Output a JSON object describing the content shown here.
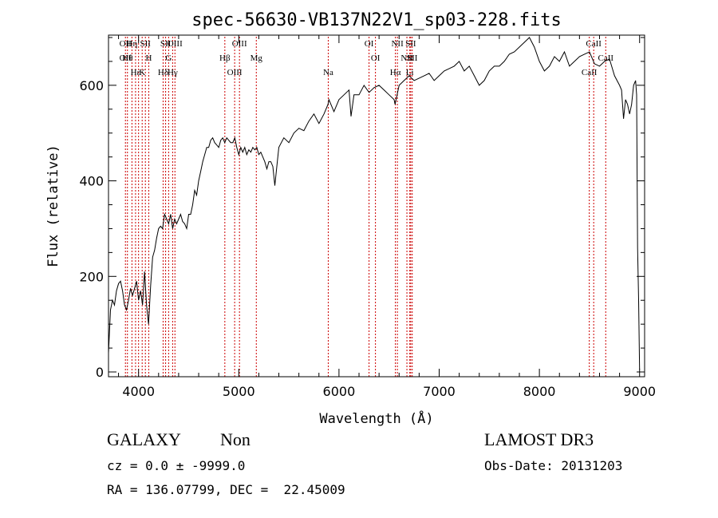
{
  "chart_data": {
    "type": "line",
    "title": "spec-56630-VB137N22V1_sp03-228.fits",
    "xlabel": "Wavelength (Å)",
    "ylabel": "Flux (relative)",
    "xlim": [
      3700,
      9050
    ],
    "ylim": [
      -10,
      705
    ],
    "x_ticks": [
      4000,
      5000,
      6000,
      7000,
      8000,
      9000
    ],
    "y_ticks": [
      0,
      200,
      400,
      600
    ],
    "minor_x_step": 200,
    "minor_y_step": 50,
    "grid": false,
    "line_color": "#000000",
    "marker_color": "#cc0000",
    "series": [
      {
        "values_x": [
          3700,
          3720,
          3740,
          3760,
          3780,
          3800,
          3820,
          3840,
          3860,
          3880,
          3900,
          3920,
          3940,
          3960,
          3980,
          4000,
          4020,
          4040,
          4060,
          4080,
          4100,
          4120,
          4140,
          4160,
          4180,
          4200,
          4220,
          4240,
          4260,
          4280,
          4300,
          4320,
          4340,
          4360,
          4380,
          4400,
          4420,
          4440,
          4460,
          4480,
          4500,
          4520,
          4540,
          4560,
          4580,
          4600,
          4620,
          4640,
          4660,
          4680,
          4700,
          4720,
          4740,
          4760,
          4780,
          4800,
          4820,
          4840,
          4860,
          4880,
          4900,
          4920,
          4940,
          4960,
          4980,
          5000,
          5020,
          5040,
          5060,
          5080,
          5100,
          5120,
          5140,
          5160,
          5180,
          5200,
          5220,
          5240,
          5260,
          5280,
          5300,
          5320,
          5340,
          5360,
          5380,
          5400,
          5450,
          5500,
          5550,
          5600,
          5650,
          5700,
          5750,
          5800,
          5850,
          5890,
          5900,
          5950,
          6000,
          6050,
          6100,
          6120,
          6150,
          6200,
          6250,
          6300,
          6350,
          6400,
          6450,
          6500,
          6550,
          6560,
          6600,
          6650,
          6700,
          6750,
          6800,
          6850,
          6900,
          6950,
          7000,
          7050,
          7100,
          7150,
          7200,
          7250,
          7300,
          7350,
          7400,
          7450,
          7500,
          7550,
          7600,
          7650,
          7700,
          7750,
          7800,
          7850,
          7900,
          7950,
          8000,
          8050,
          8100,
          8150,
          8200,
          8250,
          8300,
          8350,
          8400,
          8450,
          8500,
          8550,
          8600,
          8650,
          8700,
          8750,
          8800,
          8820,
          8840,
          8860,
          8880,
          8900,
          8920,
          8940,
          8960,
          8970,
          8980,
          8990,
          9000
        ],
        "values_y": [
          40,
          130,
          150,
          140,
          170,
          185,
          190,
          170,
          140,
          130,
          150,
          175,
          160,
          175,
          190,
          150,
          170,
          140,
          210,
          140,
          100,
          180,
          240,
          255,
          280,
          300,
          305,
          300,
          330,
          320,
          310,
          330,
          300,
          320,
          310,
          320,
          330,
          315,
          310,
          300,
          330,
          330,
          350,
          380,
          370,
          400,
          420,
          440,
          455,
          470,
          470,
          485,
          490,
          480,
          475,
          470,
          485,
          490,
          480,
          490,
          485,
          480,
          480,
          490,
          470,
          455,
          470,
          460,
          470,
          455,
          465,
          460,
          470,
          465,
          470,
          455,
          460,
          450,
          440,
          425,
          440,
          440,
          430,
          390,
          430,
          470,
          490,
          480,
          500,
          510,
          505,
          525,
          540,
          520,
          540,
          560,
          570,
          545,
          570,
          580,
          590,
          535,
          580,
          580,
          600,
          585,
          595,
          600,
          590,
          580,
          570,
          560,
          600,
          610,
          620,
          610,
          615,
          620,
          625,
          610,
          620,
          630,
          635,
          640,
          650,
          630,
          640,
          620,
          600,
          610,
          630,
          640,
          640,
          650,
          665,
          670,
          680,
          690,
          700,
          680,
          650,
          630,
          640,
          660,
          650,
          670,
          640,
          650,
          660,
          665,
          670,
          645,
          640,
          650,
          655,
          620,
          600,
          590,
          530,
          570,
          560,
          540,
          560,
          600,
          610,
          580,
          260,
          150,
          5
        ]
      }
    ],
    "lines": [
      {
        "x": 3869,
        "labels": [
          "OII",
          "OII"
        ]
      },
      {
        "x": 3889,
        "labels": [
          "Hθ"
        ]
      },
      {
        "x": 3970,
        "labels": [
          "Hε"
        ]
      },
      {
        "x": 3934,
        "labels": [
          "Hη"
        ]
      },
      {
        "x": 4000,
        "labels": [
          ""
        ]
      },
      {
        "x": 4036,
        "labels": [
          "K"
        ]
      },
      {
        "x": 4068,
        "labels": [
          "SII"
        ]
      },
      {
        "x": 4102,
        "labels": [
          "H"
        ]
      },
      {
        "x": 4245,
        "labels": [
          "Hδ"
        ]
      },
      {
        "x": 4270,
        "labels": [
          "SII"
        ]
      },
      {
        "x": 4300,
        "labels": [
          "G"
        ]
      },
      {
        "x": 4340,
        "labels": [
          "Hγ"
        ]
      },
      {
        "x": 4363,
        "labels": [
          "OIII"
        ]
      },
      {
        "x": 4861,
        "labels": [
          "Hβ"
        ]
      },
      {
        "x": 4959,
        "labels": [
          "OIII"
        ]
      },
      {
        "x": 5007,
        "labels": [
          "OIII"
        ]
      },
      {
        "x": 5175,
        "labels": [
          "Mg"
        ]
      },
      {
        "x": 5893,
        "labels": [
          "Na"
        ]
      },
      {
        "x": 6300,
        "labels": [
          "OI"
        ]
      },
      {
        "x": 6364,
        "labels": [
          "OI"
        ]
      },
      {
        "x": 6563,
        "labels": [
          "Hα"
        ]
      },
      {
        "x": 6583,
        "labels": [
          "NII"
        ]
      },
      {
        "x": 6678,
        "labels": [
          "NII"
        ]
      },
      {
        "x": 6707,
        "labels": [
          "Li"
        ]
      },
      {
        "x": 6716,
        "labels": [
          "SII"
        ]
      },
      {
        "x": 6731,
        "labels": [
          "SII"
        ]
      },
      {
        "x": 8498,
        "labels": [
          "CaII"
        ]
      },
      {
        "x": 8542,
        "labels": [
          "CaII"
        ]
      },
      {
        "x": 8662,
        "labels": [
          "CaII"
        ]
      }
    ]
  },
  "info": {
    "type_label": "GALAXY",
    "subclass": "Non",
    "survey": "LAMOST DR3",
    "cz": "cz = 0.0 ± -9999.0",
    "obs_date": "Obs-Date: 20131203",
    "radec": "RA = 136.07799, DEC =  22.45009"
  }
}
